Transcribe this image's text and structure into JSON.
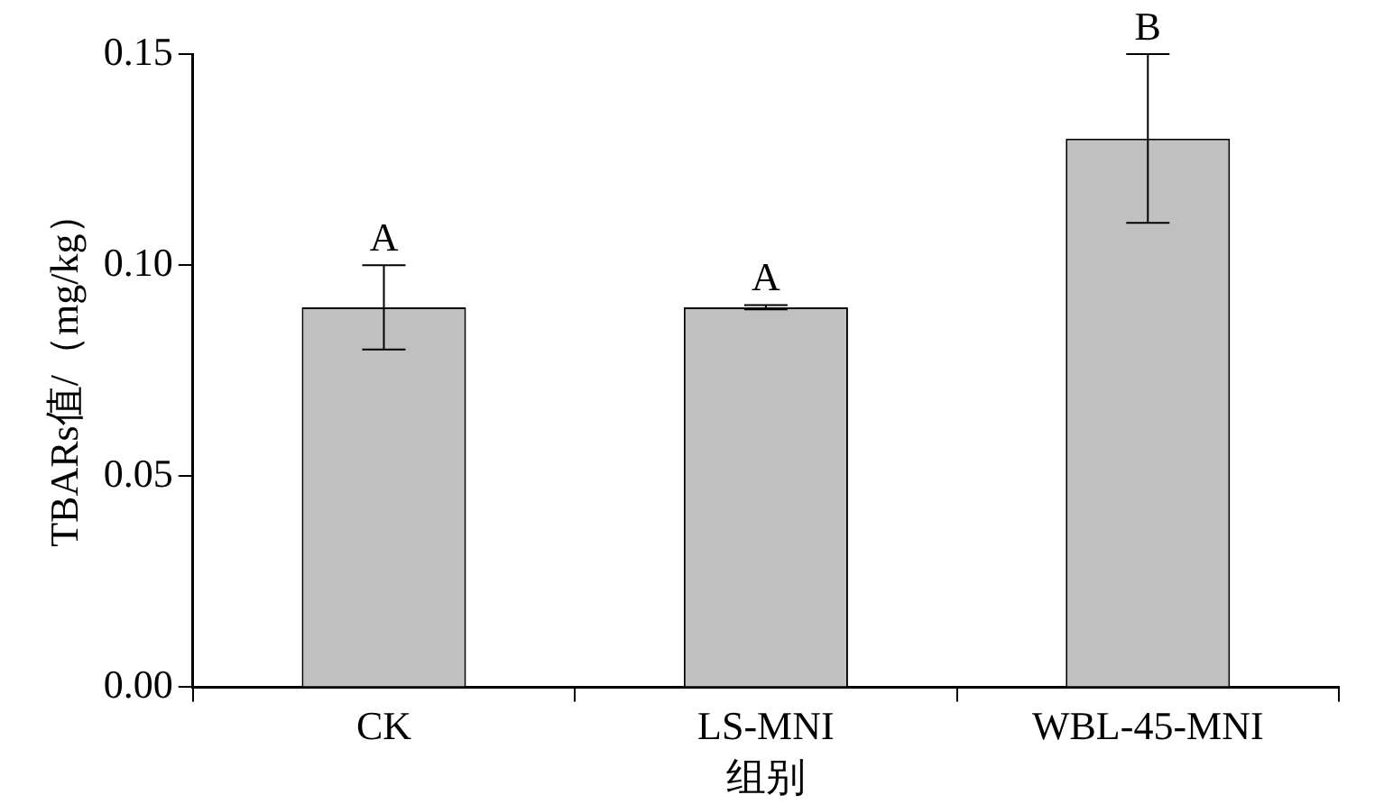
{
  "chart_data": {
    "type": "bar",
    "categories": [
      "CK",
      "LS-MNI",
      "WBL-45-MNI"
    ],
    "values": [
      0.09,
      0.09,
      0.13
    ],
    "errors": [
      0.01,
      0.0005,
      0.02
    ],
    "color": "#c0c0c0",
    "xlabel": "组别",
    "ylabel": "TBARs值/（mg/kg）",
    "ylim": [
      0,
      0.15
    ],
    "yticks": [
      {
        "value": 0,
        "label": "0.00"
      },
      {
        "value": 0.05,
        "label": "0.05"
      },
      {
        "value": 0.1,
        "label": "0.10"
      },
      {
        "value": 0.15,
        "label": "0.15"
      }
    ],
    "annotations": [
      {
        "text": "A",
        "x": "CK",
        "y": 0.1
      },
      {
        "text": "A",
        "x": "LS-MNI",
        "y": 0.0905
      },
      {
        "text": "B",
        "x": "WBL-45-MNI",
        "y": 0.15
      }
    ],
    "grid": false,
    "legend": false
  }
}
